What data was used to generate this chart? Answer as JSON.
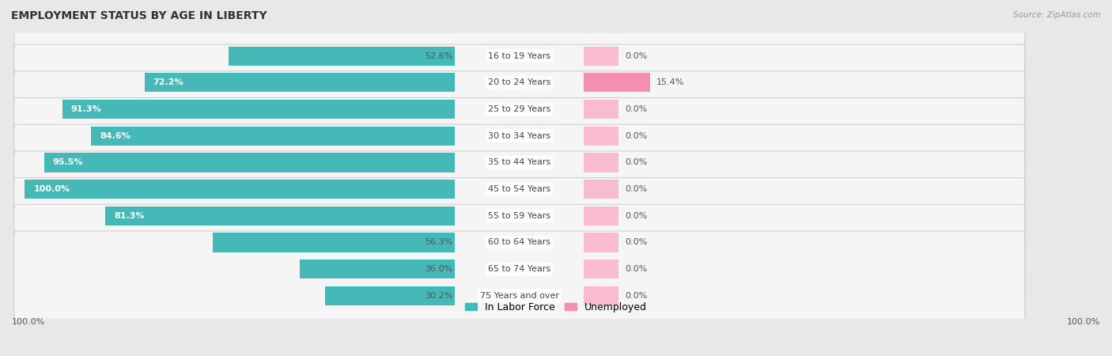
{
  "title": "EMPLOYMENT STATUS BY AGE IN LIBERTY",
  "source": "Source: ZipAtlas.com",
  "categories": [
    "16 to 19 Years",
    "20 to 24 Years",
    "25 to 29 Years",
    "30 to 34 Years",
    "35 to 44 Years",
    "45 to 54 Years",
    "55 to 59 Years",
    "60 to 64 Years",
    "65 to 74 Years",
    "75 Years and over"
  ],
  "labor_force": [
    52.6,
    72.2,
    91.3,
    84.6,
    95.5,
    100.0,
    81.3,
    56.3,
    36.0,
    30.2
  ],
  "unemployed": [
    0.0,
    15.4,
    0.0,
    0.0,
    0.0,
    0.0,
    0.0,
    0.0,
    0.0,
    0.0
  ],
  "labor_force_color": "#45B8B8",
  "unemployed_color": "#F48FB1",
  "unemployed_color_light": "#F8BBD0",
  "background_color": "#e8e8e8",
  "row_bg_color": "#f5f5f5",
  "row_border_color": "#d0d0d0",
  "axis_label_left": "100.0%",
  "axis_label_right": "100.0%",
  "max_lf": 100.0,
  "max_unemp": 100.0,
  "label_color_on_bar": "#ffffff",
  "label_color_outside": "#555555",
  "center_label_color": "#444444",
  "inside_threshold": 60.0,
  "unemp_placeholder": 8.0,
  "title_fontsize": 10,
  "label_fontsize": 8,
  "cat_fontsize": 8
}
